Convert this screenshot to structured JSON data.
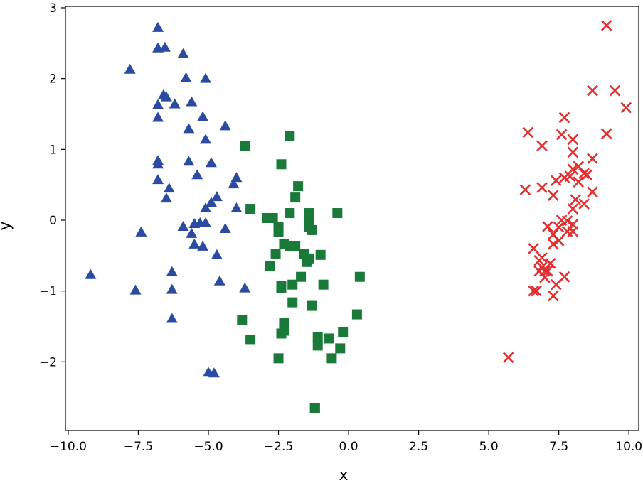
{
  "chart_data": {
    "type": "scatter",
    "xlabel": "x",
    "ylabel": "y",
    "xlim": [
      -10.1,
      10.35
    ],
    "ylim": [
      -2.97,
      3.02
    ],
    "xticks": [
      -10.0,
      -7.5,
      -5.0,
      -2.5,
      0.0,
      2.5,
      5.0,
      7.5,
      10.0
    ],
    "xtick_labels": [
      "−10.0",
      "−7.5",
      "−5.0",
      "−2.5",
      "0.0",
      "2.5",
      "5.0",
      "7.5",
      "10.0"
    ],
    "yticks": [
      -2,
      -1,
      0,
      1,
      2,
      3
    ],
    "ytick_labels": [
      "−2",
      "−1",
      "0",
      "1",
      "2",
      "3"
    ],
    "grid": false,
    "legend": "none",
    "series": [
      {
        "marker": "triangle",
        "color": "#2b4ba3",
        "points": [
          [
            -6.8,
            2.72
          ],
          [
            -6.8,
            2.43
          ],
          [
            -6.55,
            2.44
          ],
          [
            -5.9,
            2.35
          ],
          [
            -7.8,
            2.13
          ],
          [
            -5.8,
            2.01
          ],
          [
            -5.1,
            2.0
          ],
          [
            -6.6,
            1.77
          ],
          [
            -6.5,
            1.74
          ],
          [
            -6.8,
            1.63
          ],
          [
            -6.2,
            1.64
          ],
          [
            -5.6,
            1.67
          ],
          [
            -6.8,
            1.45
          ],
          [
            -5.2,
            1.46
          ],
          [
            -5.7,
            1.29
          ],
          [
            -5.1,
            1.14
          ],
          [
            -4.4,
            1.33
          ],
          [
            -6.8,
            0.84
          ],
          [
            -6.8,
            0.79
          ],
          [
            -5.7,
            0.83
          ],
          [
            -4.9,
            0.81
          ],
          [
            -5.4,
            0.64
          ],
          [
            -4.0,
            0.6
          ],
          [
            -6.8,
            0.57
          ],
          [
            -4.1,
            0.51
          ],
          [
            -6.4,
            0.45
          ],
          [
            -6.5,
            0.31
          ],
          [
            -4.7,
            0.33
          ],
          [
            -4.9,
            0.25
          ],
          [
            -5.1,
            0.17
          ],
          [
            -4.0,
            0.17
          ],
          [
            -5.5,
            -0.05
          ],
          [
            -5.3,
            -0.04
          ],
          [
            -5.1,
            -0.04
          ],
          [
            -5.9,
            -0.09
          ],
          [
            -7.4,
            -0.17
          ],
          [
            -4.4,
            -0.12
          ],
          [
            -5.6,
            -0.19
          ],
          [
            -5.5,
            -0.34
          ],
          [
            -5.2,
            -0.37
          ],
          [
            -4.7,
            -0.49
          ],
          [
            -6.3,
            -0.73
          ],
          [
            -9.2,
            -0.77
          ],
          [
            -4.6,
            -0.86
          ],
          [
            -3.7,
            -0.96
          ],
          [
            -7.6,
            -0.99
          ],
          [
            -6.3,
            -0.98
          ],
          [
            -6.3,
            -1.39
          ],
          [
            -5.0,
            -2.15
          ],
          [
            -4.8,
            -2.16
          ]
        ]
      },
      {
        "marker": "square",
        "color": "#1a7a3a",
        "points": [
          [
            -2.1,
            1.19
          ],
          [
            -3.7,
            1.05
          ],
          [
            -2.4,
            0.79
          ],
          [
            -1.8,
            0.48
          ],
          [
            -1.9,
            0.32
          ],
          [
            -3.5,
            0.16
          ],
          [
            -2.1,
            0.1
          ],
          [
            -1.4,
            0.1
          ],
          [
            -0.4,
            0.1
          ],
          [
            -2.9,
            0.03
          ],
          [
            -2.7,
            0.03
          ],
          [
            -1.4,
            0.01
          ],
          [
            -2.5,
            -0.1
          ],
          [
            -1.4,
            -0.1
          ],
          [
            -2.5,
            -0.17
          ],
          [
            -1.3,
            -0.14
          ],
          [
            -2.3,
            -0.34
          ],
          [
            -2.1,
            -0.37
          ],
          [
            -1.9,
            -0.37
          ],
          [
            -2.6,
            -0.48
          ],
          [
            -1.6,
            -0.48
          ],
          [
            -1.0,
            -0.49
          ],
          [
            -1.4,
            -0.54
          ],
          [
            -1.5,
            -0.59
          ],
          [
            -2.8,
            -0.65
          ],
          [
            0.4,
            -0.8
          ],
          [
            -1.7,
            -0.8
          ],
          [
            -2.4,
            -0.93
          ],
          [
            -2.0,
            -0.91
          ],
          [
            -0.9,
            -0.91
          ],
          [
            -2.4,
            -0.96
          ],
          [
            -2.0,
            -1.16
          ],
          [
            -1.3,
            -1.21
          ],
          [
            -3.8,
            -1.41
          ],
          [
            0.3,
            -1.33
          ],
          [
            -2.3,
            -1.45
          ],
          [
            -2.3,
            -1.56
          ],
          [
            -2.4,
            -1.6
          ],
          [
            -0.2,
            -1.58
          ],
          [
            -1.1,
            -1.65
          ],
          [
            -0.7,
            -1.67
          ],
          [
            -3.5,
            -1.69
          ],
          [
            -1.1,
            -1.77
          ],
          [
            -0.3,
            -1.81
          ],
          [
            -2.5,
            -1.95
          ],
          [
            -0.6,
            -1.95
          ],
          [
            -1.2,
            -2.65
          ],
          [
            -1.2,
            -2.65
          ]
        ]
      },
      {
        "marker": "x",
        "color": "#e03030",
        "points": [
          [
            9.2,
            2.75
          ],
          [
            8.7,
            1.83
          ],
          [
            9.5,
            1.83
          ],
          [
            9.9,
            1.59
          ],
          [
            7.7,
            1.45
          ],
          [
            6.4,
            1.24
          ],
          [
            9.2,
            1.22
          ],
          [
            7.6,
            1.21
          ],
          [
            8.0,
            1.14
          ],
          [
            6.9,
            1.05
          ],
          [
            8.0,
            0.96
          ],
          [
            8.7,
            0.87
          ],
          [
            8.2,
            0.76
          ],
          [
            8.0,
            0.72
          ],
          [
            8.4,
            0.66
          ],
          [
            8.5,
            0.64
          ],
          [
            7.9,
            0.62
          ],
          [
            7.7,
            0.6
          ],
          [
            7.4,
            0.56
          ],
          [
            8.2,
            0.54
          ],
          [
            6.9,
            0.46
          ],
          [
            6.3,
            0.43
          ],
          [
            7.3,
            0.35
          ],
          [
            8.7,
            0.4
          ],
          [
            8.1,
            0.29
          ],
          [
            8.4,
            0.23
          ],
          [
            8.0,
            0.16
          ],
          [
            7.6,
            0.0
          ],
          [
            8.0,
            -0.06
          ],
          [
            7.8,
            -0.01
          ],
          [
            7.1,
            -0.09
          ],
          [
            7.5,
            -0.1
          ],
          [
            7.8,
            -0.16
          ],
          [
            8.0,
            -0.16
          ],
          [
            7.3,
            -0.2
          ],
          [
            7.5,
            -0.29
          ],
          [
            7.3,
            -0.34
          ],
          [
            6.6,
            -0.4
          ],
          [
            6.9,
            -0.53
          ],
          [
            6.8,
            -0.57
          ],
          [
            7.2,
            -0.61
          ],
          [
            6.9,
            -0.66
          ],
          [
            6.8,
            -0.72
          ],
          [
            7.0,
            -0.72
          ],
          [
            7.1,
            -0.72
          ],
          [
            7.7,
            -0.8
          ],
          [
            7.0,
            -0.81
          ],
          [
            7.4,
            -0.91
          ],
          [
            6.7,
            -1.0
          ],
          [
            6.6,
            -1.0
          ],
          [
            7.3,
            -1.07
          ],
          [
            5.7,
            -1.94
          ]
        ]
      }
    ]
  }
}
